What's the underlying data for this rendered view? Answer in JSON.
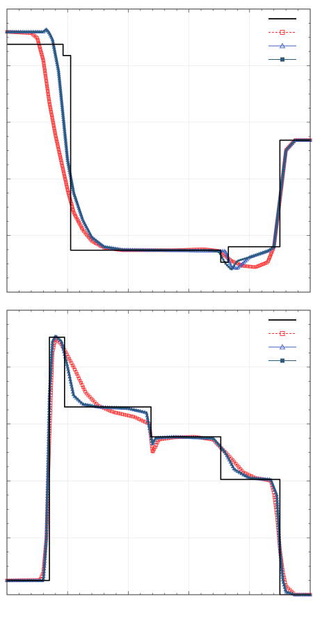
{
  "chart_data": [
    {
      "type": "line",
      "xlim": [
        0,
        1
      ],
      "ylim": [
        0,
        1
      ],
      "grid": true,
      "legend_placement": "top-right",
      "series": [
        {
          "key": "exact",
          "color": "#000000",
          "style": "solid",
          "marker": "none",
          "x": [
            0.0,
            0.185,
            0.185,
            0.21,
            0.21,
            0.705,
            0.705,
            0.73,
            0.73,
            0.9,
            0.9,
            1.0
          ],
          "y": [
            0.945,
            0.945,
            0.9,
            0.9,
            0.118,
            0.118,
            0.07,
            0.07,
            0.132,
            0.132,
            0.56,
            0.56
          ]
        },
        {
          "key": "series-square",
          "color": "#ff2a2a",
          "style": "dashed",
          "marker": "square",
          "x": [
            0.0,
            0.08,
            0.1,
            0.12,
            0.14,
            0.16,
            0.18,
            0.2,
            0.22,
            0.25,
            0.28,
            0.32,
            0.38,
            0.45,
            0.55,
            0.65,
            0.7,
            0.74,
            0.78,
            0.82,
            0.86,
            0.88,
            0.9,
            0.92,
            0.95,
            1.0
          ],
          "y": [
            0.995,
            0.99,
            0.97,
            0.88,
            0.71,
            0.58,
            0.47,
            0.36,
            0.27,
            0.2,
            0.155,
            0.128,
            0.118,
            0.118,
            0.118,
            0.122,
            0.115,
            0.075,
            0.055,
            0.05,
            0.07,
            0.13,
            0.32,
            0.52,
            0.56,
            0.56
          ]
        },
        {
          "key": "series-triangle",
          "color": "#3a5fbf",
          "style": "solid",
          "marker": "triangle",
          "x": [
            0.0,
            0.12,
            0.13,
            0.14,
            0.15,
            0.17,
            0.19,
            0.2,
            0.22,
            0.25,
            0.28,
            0.32,
            0.38,
            0.5,
            0.68,
            0.72,
            0.74,
            0.76,
            0.8,
            0.86,
            0.88,
            0.9,
            0.92,
            0.95,
            1.0
          ],
          "y": [
            0.995,
            0.995,
            1.005,
            0.99,
            0.965,
            0.84,
            0.6,
            0.48,
            0.35,
            0.24,
            0.17,
            0.132,
            0.12,
            0.118,
            0.115,
            0.115,
            0.05,
            0.045,
            0.09,
            0.115,
            0.13,
            0.33,
            0.52,
            0.56,
            0.56
          ]
        },
        {
          "key": "series-filled-square",
          "color": "#2c5a7a",
          "style": "solid",
          "marker": "filled-square",
          "x": [
            0.0,
            0.12,
            0.13,
            0.14,
            0.15,
            0.17,
            0.19,
            0.2,
            0.22,
            0.25,
            0.28,
            0.32,
            0.38,
            0.5,
            0.68,
            0.7,
            0.72,
            0.74,
            0.76,
            0.8,
            0.86,
            0.88,
            0.9,
            0.92,
            0.95,
            1.0
          ],
          "y": [
            0.995,
            0.995,
            1.005,
            0.99,
            0.965,
            0.84,
            0.6,
            0.48,
            0.35,
            0.24,
            0.17,
            0.132,
            0.12,
            0.118,
            0.118,
            0.11,
            0.065,
            0.04,
            0.075,
            0.09,
            0.115,
            0.13,
            0.33,
            0.52,
            0.56,
            0.56
          ]
        }
      ]
    },
    {
      "type": "line",
      "xlim": [
        0,
        1
      ],
      "ylim": [
        0,
        1
      ],
      "grid": true,
      "legend_placement": "top-right",
      "series": [
        {
          "key": "exact",
          "color": "#000000",
          "style": "solid",
          "marker": "none",
          "x": [
            0.0,
            0.14,
            0.14,
            0.19,
            0.19,
            0.475,
            0.475,
            0.705,
            0.705,
            0.9,
            0.9,
            1.0
          ],
          "y": [
            0.05,
            0.05,
            0.905,
            0.905,
            0.66,
            0.66,
            0.555,
            0.555,
            0.405,
            0.405,
            0.0,
            0.0
          ]
        },
        {
          "key": "series-square",
          "color": "#ff2a2a",
          "style": "dashed",
          "marker": "square",
          "x": [
            0.0,
            0.11,
            0.12,
            0.13,
            0.14,
            0.15,
            0.16,
            0.18,
            0.22,
            0.26,
            0.3,
            0.35,
            0.42,
            0.47,
            0.48,
            0.49,
            0.5,
            0.55,
            0.62,
            0.68,
            0.73,
            0.78,
            0.82,
            0.85,
            0.87,
            0.88,
            0.89,
            0.9,
            0.91,
            0.92,
            0.95,
            1.0
          ],
          "y": [
            0.05,
            0.052,
            0.08,
            0.2,
            0.55,
            0.85,
            0.9,
            0.88,
            0.8,
            0.71,
            0.665,
            0.642,
            0.625,
            0.6,
            0.5,
            0.52,
            0.545,
            0.553,
            0.555,
            0.545,
            0.49,
            0.43,
            0.41,
            0.405,
            0.4,
            0.36,
            0.28,
            0.16,
            0.08,
            0.03,
            0.0,
            0.0
          ]
        },
        {
          "key": "series-triangle",
          "color": "#3a5fbf",
          "style": "solid",
          "marker": "triangle",
          "x": [
            0.0,
            0.12,
            0.13,
            0.14,
            0.15,
            0.16,
            0.18,
            0.2,
            0.22,
            0.25,
            0.3,
            0.4,
            0.46,
            0.48,
            0.49,
            0.5,
            0.55,
            0.68,
            0.72,
            0.75,
            0.8,
            0.87,
            0.89,
            0.9,
            0.91,
            0.92,
            0.95,
            1.0
          ],
          "y": [
            0.05,
            0.05,
            0.2,
            0.7,
            0.89,
            0.91,
            0.89,
            0.8,
            0.7,
            0.67,
            0.66,
            0.655,
            0.64,
            0.53,
            0.55,
            0.552,
            0.555,
            0.55,
            0.5,
            0.44,
            0.41,
            0.405,
            0.35,
            0.16,
            0.05,
            0.01,
            0.0,
            0.0
          ]
        },
        {
          "key": "series-filled-square",
          "color": "#2c5a7a",
          "style": "solid",
          "marker": "filled-square",
          "x": [
            0.0,
            0.12,
            0.13,
            0.14,
            0.15,
            0.16,
            0.18,
            0.2,
            0.22,
            0.25,
            0.3,
            0.4,
            0.46,
            0.48,
            0.49,
            0.5,
            0.55,
            0.68,
            0.72,
            0.75,
            0.8,
            0.87,
            0.89,
            0.9,
            0.91,
            0.92,
            0.95,
            1.0
          ],
          "y": [
            0.05,
            0.05,
            0.2,
            0.7,
            0.89,
            0.91,
            0.89,
            0.8,
            0.7,
            0.67,
            0.66,
            0.655,
            0.64,
            0.53,
            0.55,
            0.552,
            0.555,
            0.55,
            0.5,
            0.44,
            0.41,
            0.405,
            0.35,
            0.16,
            0.05,
            0.01,
            0.0,
            0.0
          ]
        }
      ]
    }
  ]
}
